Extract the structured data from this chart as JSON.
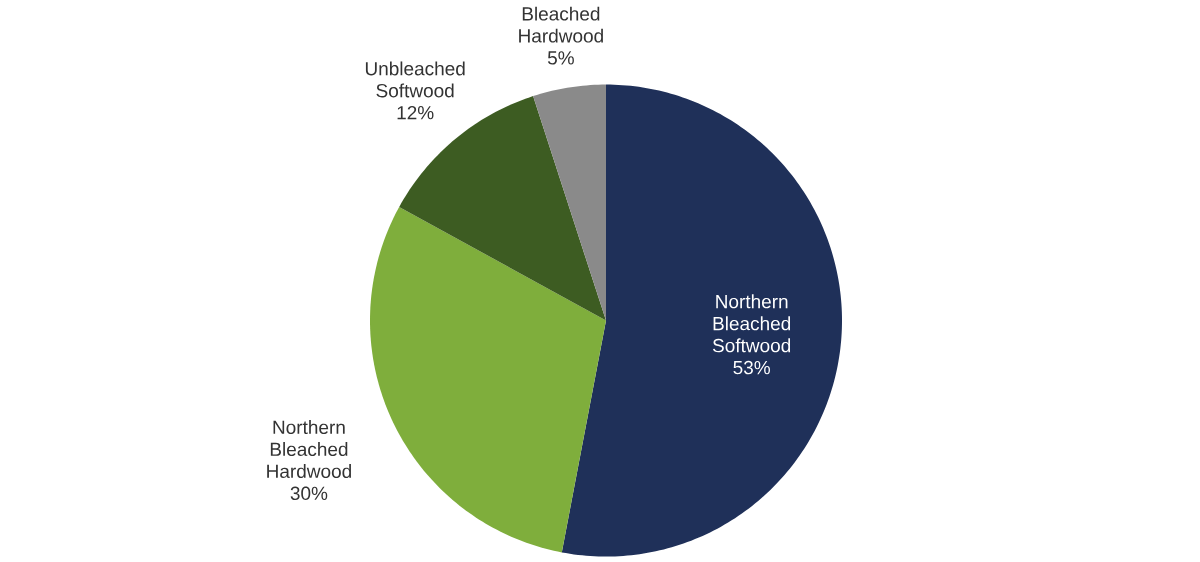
{
  "chart_data": {
    "type": "pie",
    "categories": [
      "Northern Bleached Softwood",
      "Northern Bleached Hardwood",
      "Unbleached Softwood",
      "Bleached Hardwood"
    ],
    "values": [
      53,
      30,
      12,
      5
    ],
    "value_labels": [
      "53%",
      "30%",
      "12%",
      "5%"
    ],
    "colors": [
      "#1f3059",
      "#7fae3c",
      "#3d5c22",
      "#8a8a8a"
    ]
  }
}
